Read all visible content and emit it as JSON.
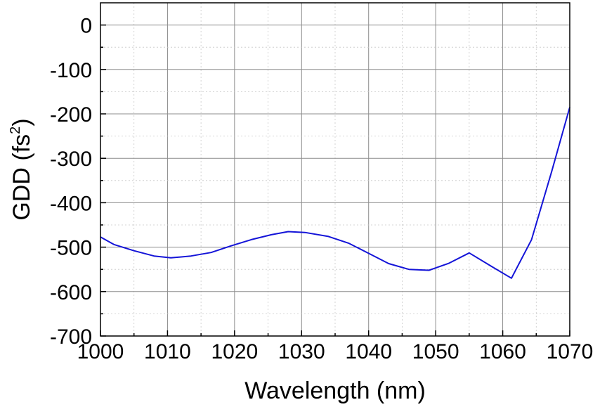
{
  "chart_data": {
    "type": "line",
    "title": "",
    "xlabel": "Wavelength (nm)",
    "ylabel_main": "GDD (fs",
    "ylabel_sup": "2",
    "ylabel_close": ")",
    "xlim": [
      1000,
      1070
    ],
    "ylim": [
      -700,
      50
    ],
    "x_ticks": [
      1000,
      1010,
      1020,
      1030,
      1040,
      1050,
      1060,
      1070
    ],
    "y_ticks": [
      0,
      -100,
      -200,
      -300,
      -400,
      -500,
      -600,
      -700
    ],
    "x_tick_labels": [
      "1000",
      "1010",
      "1020",
      "1030",
      "1040",
      "1050",
      "1060",
      "1070"
    ],
    "y_tick_labels": [
      "0",
      "-100",
      "-200",
      "-300",
      "-400",
      "-500",
      "-600",
      "-700"
    ],
    "grid": true,
    "line_color": "#1414d8",
    "series": [
      {
        "x": [
          1000,
          1002,
          1005,
          1008,
          1010.5,
          1013.5,
          1016.5,
          1019.5,
          1022.5,
          1025.5,
          1028,
          1030.5,
          1034,
          1037,
          1040,
          1043,
          1046,
          1049,
          1052,
          1055,
          1058.5,
          1061.3,
          1064.3,
          1067.3,
          1070
        ],
        "y": [
          -477,
          -494,
          -508,
          -520,
          -524,
          -520,
          -512,
          -497,
          -483,
          -472,
          -465,
          -467,
          -476,
          -491,
          -514,
          -537,
          -550,
          -552,
          -536,
          -513,
          -545,
          -570,
          -483,
          -330,
          -185
        ]
      }
    ]
  }
}
